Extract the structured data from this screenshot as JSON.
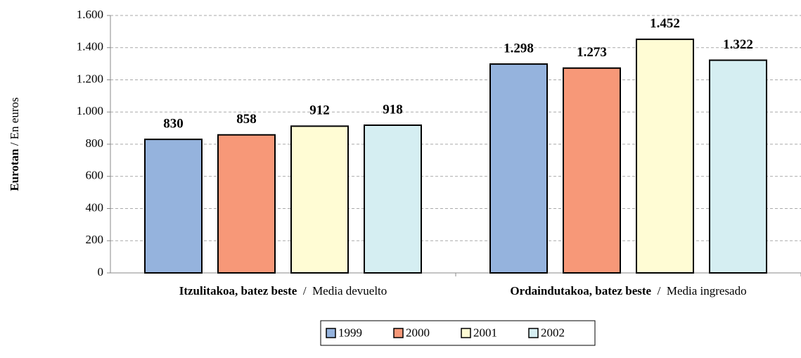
{
  "chart_data": {
    "type": "bar",
    "ylabel": "Eurotan",
    "ylabel_translation": "En euros",
    "separator": "/",
    "categories": [
      "Itzulitakoa, batez beste",
      "Ordaindutakoa, batez beste"
    ],
    "category_translations": [
      "Media devuelto",
      "Media ingresado"
    ],
    "series": [
      {
        "name": "1999",
        "color": "#95b3dd",
        "values": [
          830,
          1298
        ],
        "value_labels": [
          "830",
          "1.298"
        ]
      },
      {
        "name": "2000",
        "color": "#f79878",
        "values": [
          858,
          1273
        ],
        "value_labels": [
          "858",
          "1.273"
        ]
      },
      {
        "name": "2001",
        "color": "#fffcd4",
        "values": [
          912,
          1452
        ],
        "value_labels": [
          "912",
          "1.452"
        ]
      },
      {
        "name": "2002",
        "color": "#d5eef2",
        "values": [
          918,
          1322
        ],
        "value_labels": [
          "918",
          "1.322"
        ]
      }
    ],
    "ylim": [
      0,
      1600
    ],
    "yticks": [
      0,
      200,
      400,
      600,
      800,
      {
        "value": 1000,
        "label": "1.000"
      },
      {
        "value": 1200,
        "label": "1.200"
      },
      {
        "value": 1400,
        "label": "1.400"
      },
      {
        "value": 1600,
        "label": "1.600"
      }
    ],
    "grid": true,
    "legend": "bottom"
  }
}
